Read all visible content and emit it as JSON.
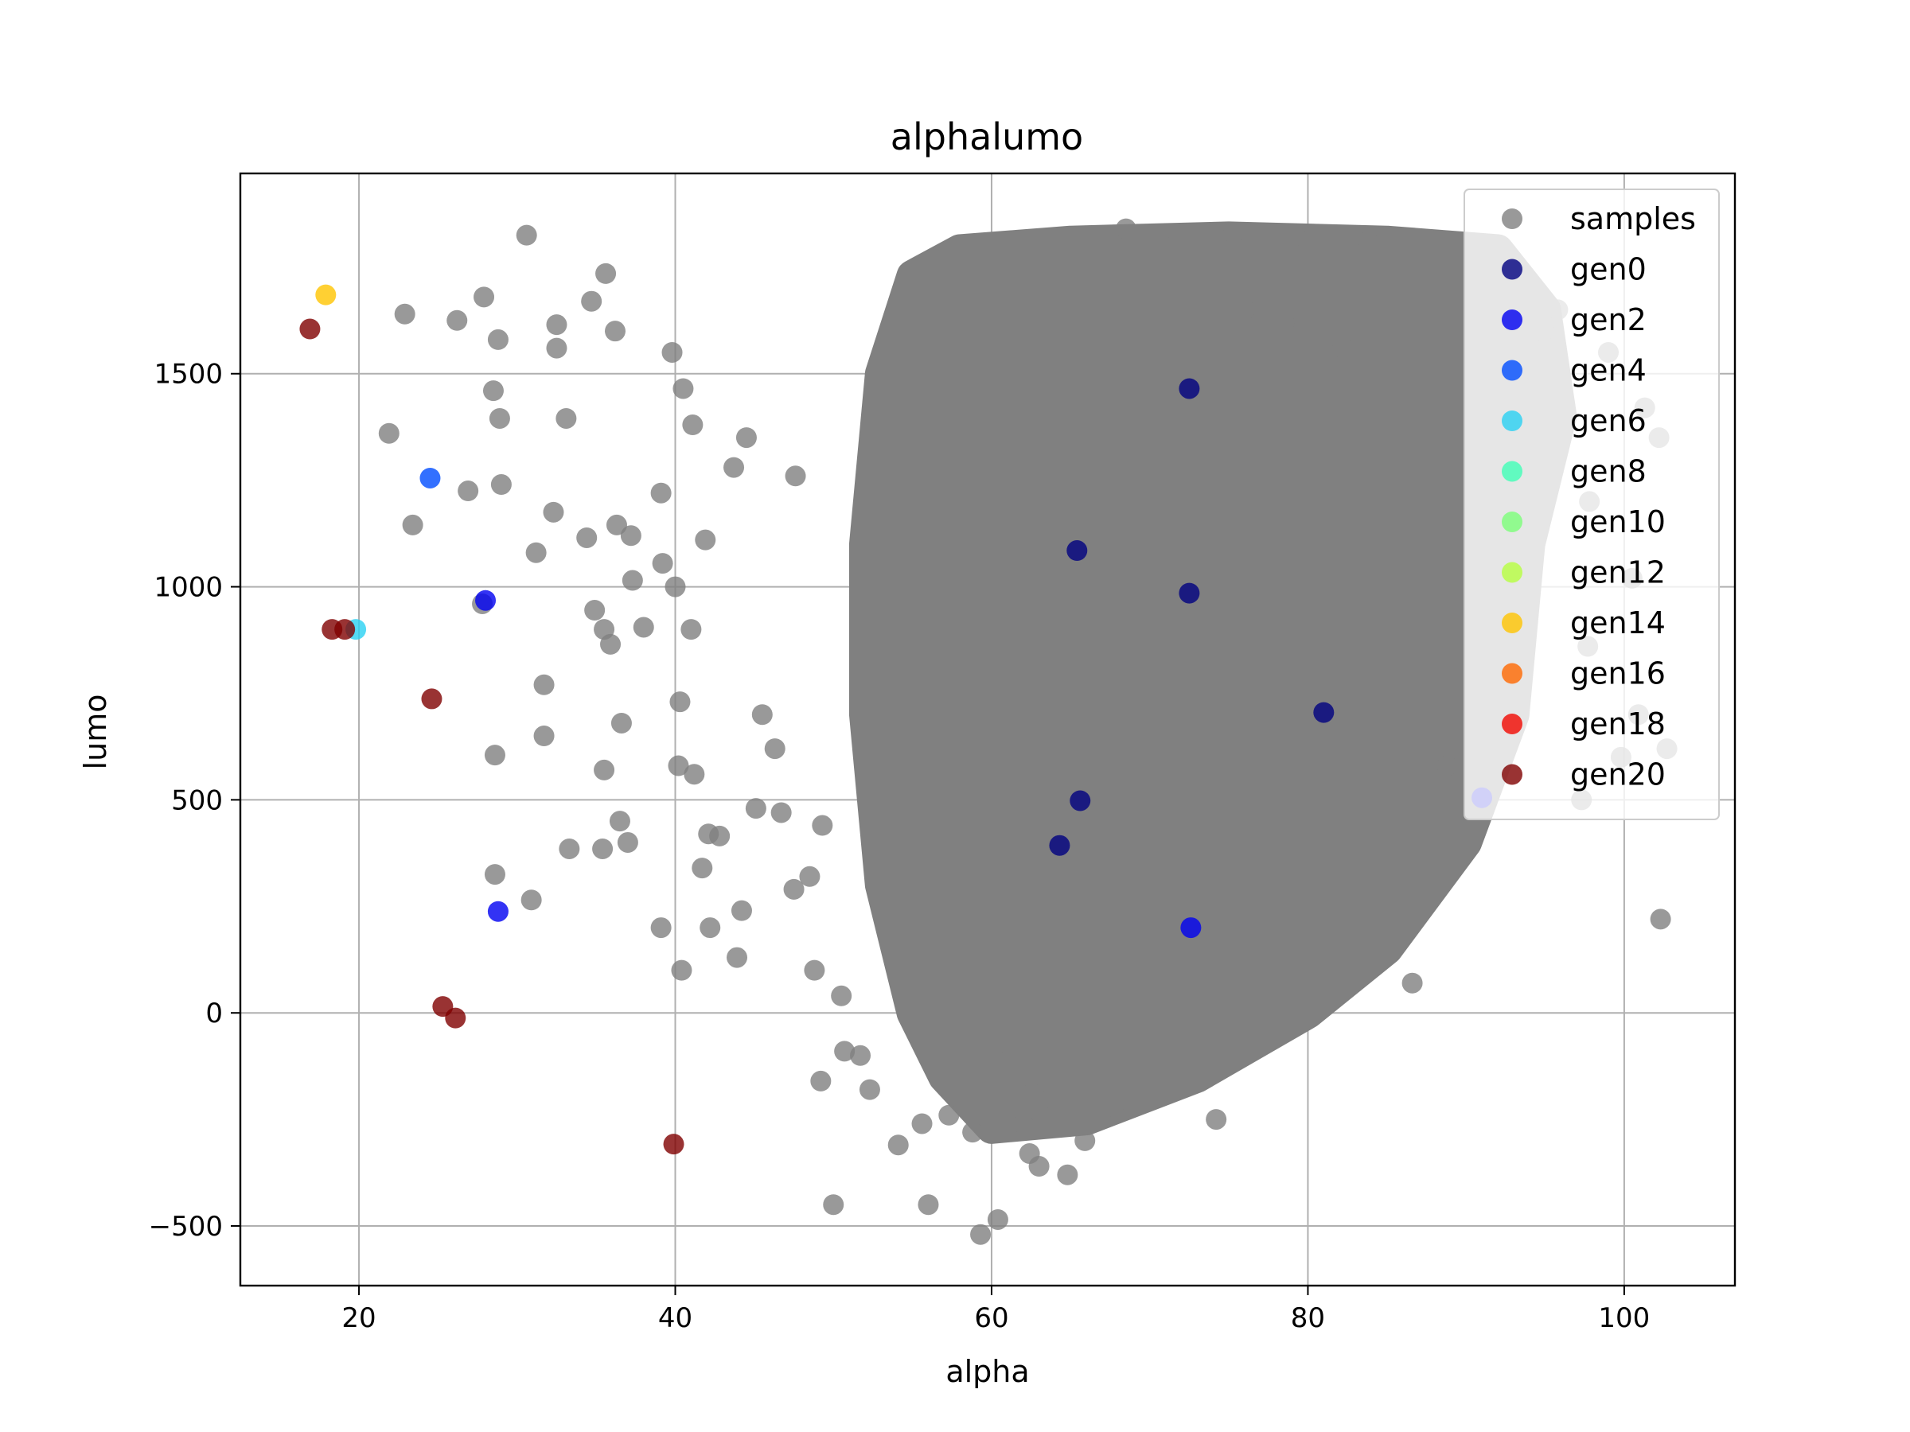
{
  "chart_data": {
    "type": "scatter",
    "title": "alphalumo",
    "xlabel": "alpha",
    "ylabel": "lumo",
    "xlim": [
      12.5,
      107
    ],
    "ylim": [
      -640,
      1970
    ],
    "xticks": [
      20,
      40,
      60,
      80,
      100
    ],
    "yticks": [
      -500,
      0,
      500,
      1000,
      1500
    ],
    "xtick_labels": [
      "20",
      "40",
      "60",
      "80",
      "100"
    ],
    "ytick_labels": [
      "−500",
      "0",
      "500",
      "1000",
      "1500"
    ],
    "grid": true,
    "legend_position": "top-right",
    "samples_cloud": {
      "description": "dense cloud of several thousand gray sample points; approximate hull",
      "hull": [
        [
          55,
          1730
        ],
        [
          58,
          1790
        ],
        [
          65,
          1810
        ],
        [
          75,
          1820
        ],
        [
          85,
          1810
        ],
        [
          92,
          1790
        ],
        [
          95,
          1650
        ],
        [
          96,
          1400
        ],
        [
          94,
          1100
        ],
        [
          93,
          700
        ],
        [
          90,
          400
        ],
        [
          85,
          150
        ],
        [
          80,
          0
        ],
        [
          73,
          -150
        ],
        [
          66,
          -250
        ],
        [
          60,
          -270
        ],
        [
          57,
          -150
        ],
        [
          55,
          0
        ],
        [
          53,
          300
        ],
        [
          52,
          700
        ],
        [
          52,
          1100
        ],
        [
          53,
          1500
        ]
      ]
    },
    "series": [
      {
        "name": "samples",
        "color": "#808080",
        "x": [
          30.6,
          22.9,
          27.9,
          26.2,
          28.5,
          32.5,
          32.5,
          35.6,
          36.2,
          34.7,
          28.8,
          28.9,
          26.9,
          21.9,
          33.1,
          29.0,
          32.3,
          23.4,
          31.2,
          27.8,
          34.4,
          35.5,
          36.3,
          37.2,
          35.9,
          31.7,
          31.7,
          28.6,
          34.9,
          30.9,
          28.6,
          33.3,
          35.4,
          37.0,
          36.5,
          39.1,
          39.8,
          40.5,
          38.0,
          37.3,
          40.2,
          41.2,
          41.1,
          39.2,
          42.1,
          42.8,
          41.7,
          40.0,
          40.3,
          42.2,
          41.9,
          44.5,
          43.7,
          45.5,
          46.3,
          45.1,
          47.6,
          44.2,
          43.9,
          46.7,
          48.5,
          49.3,
          47.5,
          48.8,
          50.5,
          51.7,
          52.3,
          50.0,
          50.7,
          49.2,
          54.1,
          55.6,
          56.0,
          57.3,
          58.8,
          59.3,
          60.4,
          60.9,
          62.4,
          63.0,
          64.8,
          65.9,
          63.8,
          62.5,
          61.3,
          62.0,
          67.7,
          74.2,
          86.6,
          97.3,
          97.7,
          99.8,
          100.9,
          102.2,
          102.7,
          102.3,
          100.5,
          97.8,
          99.0,
          101.3,
          95.8,
          93.5,
          94.9,
          88.8,
          80.0,
          83.8,
          82.2,
          78.5,
          75.3,
          68.5,
          70.8,
          76.0,
          36.6,
          35.5,
          41.0,
          39.1,
          40.4
        ],
        "y": [
          1825,
          1640,
          1680,
          1625,
          1460,
          1615,
          1560,
          1735,
          1600,
          1670,
          1580,
          1395,
          1225,
          1360,
          1395,
          1240,
          1175,
          1145,
          1080,
          960,
          1115,
          900,
          1145,
          1120,
          865,
          650,
          770,
          605,
          945,
          265,
          325,
          385,
          385,
          400,
          450,
          1220,
          1550,
          1465,
          905,
          1015,
          580,
          560,
          1380,
          1055,
          420,
          415,
          340,
          1000,
          730,
          200,
          1110,
          1350,
          1280,
          700,
          620,
          480,
          1260,
          240,
          130,
          470,
          320,
          440,
          290,
          100,
          40,
          -100,
          -180,
          -450,
          -90,
          -160,
          -310,
          -260,
          -450,
          -240,
          -280,
          -520,
          -485,
          -240,
          -330,
          -360,
          -380,
          -300,
          -200,
          -150,
          -100,
          -260,
          -220,
          -250,
          70,
          500,
          860,
          600,
          700,
          1350,
          620,
          220,
          1020,
          1200,
          1550,
          1420,
          1650,
          1470,
          1600,
          580,
          1810,
          1810,
          1560,
          1620,
          1830,
          1840,
          1800,
          1650,
          680,
          570,
          900,
          200,
          100
        ]
      },
      {
        "name": "gen0",
        "color": "#000080",
        "x": [
          72.5,
          65.4,
          72.5,
          81.0,
          65.6,
          64.3
        ],
        "y": [
          1465,
          1085,
          985,
          705,
          498,
          393
        ]
      },
      {
        "name": "gen2",
        "color": "#0000f1",
        "x": [
          72.6,
          28.0,
          28.8,
          91.0
        ],
        "y": [
          200,
          968,
          238,
          505
        ]
      },
      {
        "name": "gen4",
        "color": "#004cff",
        "x": [
          24.5
        ],
        "y": [
          1255
        ]
      },
      {
        "name": "gen6",
        "color": "#29d1f3",
        "x": [
          19.8
        ],
        "y": [
          900
        ]
      },
      {
        "name": "gen8",
        "color": "#40ffb7",
        "x": [],
        "y": []
      },
      {
        "name": "gen10",
        "color": "#7cff79",
        "x": [],
        "y": []
      },
      {
        "name": "gen12",
        "color": "#b7ff40",
        "x": [],
        "y": []
      },
      {
        "name": "gen14",
        "color": "#ffc400",
        "x": [
          17.9
        ],
        "y": [
          1685
        ]
      },
      {
        "name": "gen16",
        "color": "#ff6800",
        "x": [],
        "y": []
      },
      {
        "name": "gen18",
        "color": "#f10800",
        "x": [],
        "y": []
      },
      {
        "name": "gen20",
        "color": "#800000",
        "x": [
          16.9,
          18.3,
          19.1,
          24.6,
          25.3,
          26.1,
          39.9
        ],
        "y": [
          1605,
          900,
          900,
          737,
          15,
          -12,
          -308
        ]
      }
    ]
  }
}
